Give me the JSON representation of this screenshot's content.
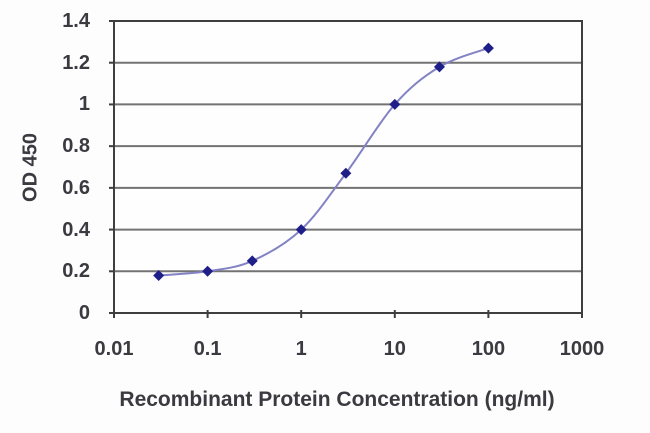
{
  "chart_data": {
    "type": "line",
    "title": "",
    "xlabel": "Recombinant Protein Concentration (ng/ml)",
    "ylabel": "OD 450",
    "x_scale": "log",
    "xlim": [
      0.01,
      1000
    ],
    "ylim": [
      0,
      1.4
    ],
    "grid": "horizontal",
    "legend_position": "none",
    "xticks": {
      "values": [
        0.01,
        0.1,
        1,
        10,
        100,
        1000
      ],
      "labels": [
        "0.01",
        "0.1",
        "1",
        "10",
        "100",
        "1000"
      ]
    },
    "yticks": {
      "values": [
        0,
        0.2,
        0.4,
        0.6,
        0.8,
        1,
        1.2,
        1.4
      ],
      "labels": [
        "0",
        "0.2",
        "0.4",
        "0.6",
        "0.8",
        "1",
        "1.2",
        "1.4"
      ]
    },
    "series": [
      {
        "name": "OD 450",
        "marker": "diamond",
        "smooth": true,
        "points": [
          {
            "x": 0.03,
            "y": 0.18
          },
          {
            "x": 0.1,
            "y": 0.2
          },
          {
            "x": 0.3,
            "y": 0.25
          },
          {
            "x": 1,
            "y": 0.4
          },
          {
            "x": 3,
            "y": 0.67
          },
          {
            "x": 10,
            "y": 1.0
          },
          {
            "x": 30,
            "y": 1.18
          },
          {
            "x": 100,
            "y": 1.27
          }
        ]
      }
    ],
    "colors": {
      "marker": "#1f1f8a",
      "line": "#8282c4",
      "grid": "#737373",
      "axis": "#3f3f3f",
      "text": "#3a3a40",
      "plot_background": "#fefefe",
      "background": "#fdfdfd"
    }
  }
}
